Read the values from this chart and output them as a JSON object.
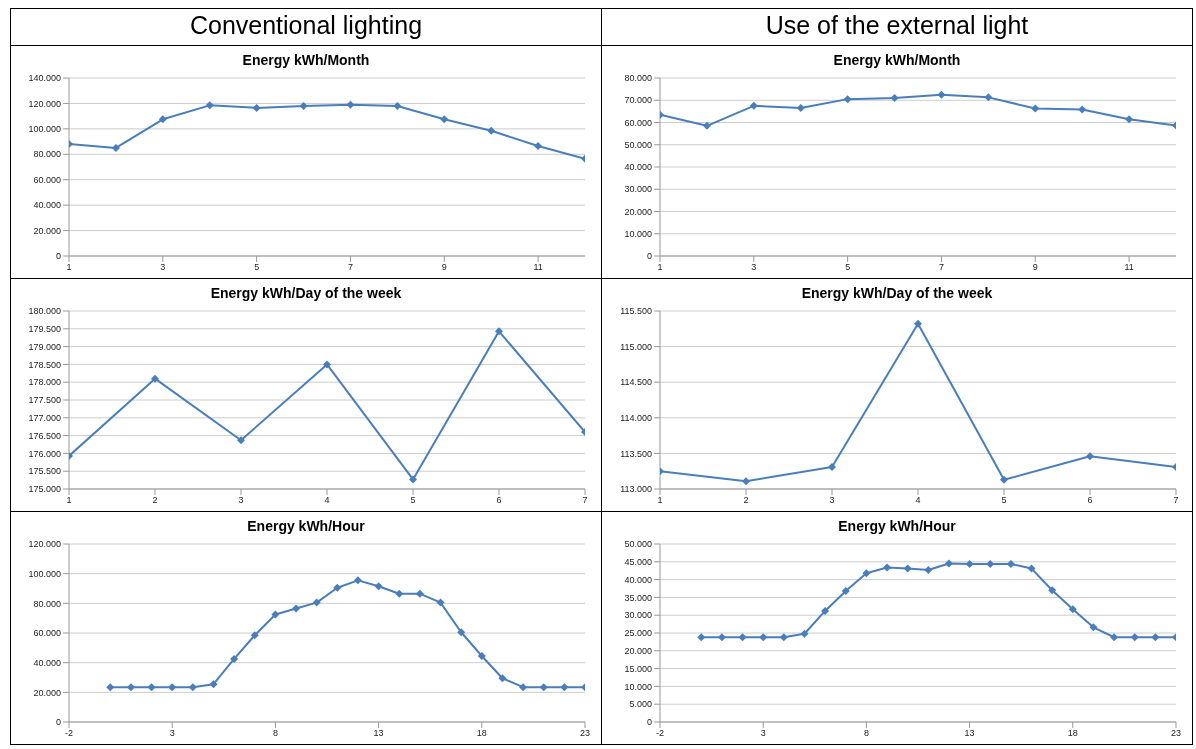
{
  "chart_data": [
    {
      "type": "line",
      "title": "Energy kWh/Month",
      "annotations": [
        "Conventional lighting"
      ],
      "x": [
        1,
        2,
        3,
        4,
        5,
        6,
        7,
        8,
        9,
        10,
        11,
        12
      ],
      "series": [
        {
          "color": "#4a7ebb",
          "values": [
            88000,
            85000,
            107500,
            118500,
            116500,
            118000,
            119000,
            118000,
            107500,
            98500,
            86500,
            76500
          ]
        }
      ],
      "xlim": [
        1,
        12
      ],
      "xticks": [
        1,
        3,
        5,
        7,
        9,
        11
      ],
      "ylim": [
        0,
        140000
      ],
      "yticks": [
        {
          "value": 0,
          "label": "0"
        },
        {
          "value": 20000,
          "label": "20.000"
        },
        {
          "value": 40000,
          "label": "40.000"
        },
        {
          "value": 60000,
          "label": "60.000"
        },
        {
          "value": 80000,
          "label": "80.000"
        },
        {
          "value": 100000,
          "label": "100.000"
        },
        {
          "value": 120000,
          "label": "120.000"
        },
        {
          "value": 140000,
          "label": "140.000"
        }
      ],
      "grid": "y",
      "marker": "diamond",
      "line_style": "solid",
      "legend": false
    },
    {
      "type": "line",
      "title": "Energy kWh/Month",
      "annotations": [
        "Use of the external light"
      ],
      "x": [
        1,
        2,
        3,
        4,
        5,
        6,
        7,
        8,
        9,
        10,
        11,
        12
      ],
      "series": [
        {
          "color": "#4a7ebb",
          "values": [
            63500,
            58500,
            67500,
            66500,
            70500,
            71000,
            72500,
            71300,
            66300,
            65800,
            61500,
            58700
          ]
        }
      ],
      "xlim": [
        1,
        12
      ],
      "xticks": [
        1,
        3,
        5,
        7,
        9,
        11
      ],
      "ylim": [
        0,
        80000
      ],
      "yticks": [
        {
          "value": 0,
          "label": "0"
        },
        {
          "value": 10000,
          "label": "10.000"
        },
        {
          "value": 20000,
          "label": "20.000"
        },
        {
          "value": 30000,
          "label": "30.000"
        },
        {
          "value": 40000,
          "label": "40.000"
        },
        {
          "value": 50000,
          "label": "50.000"
        },
        {
          "value": 60000,
          "label": "60.000"
        },
        {
          "value": 70000,
          "label": "70.000"
        },
        {
          "value": 80000,
          "label": "80.000"
        }
      ],
      "grid": "y",
      "marker": "diamond",
      "line_style": "solid",
      "legend": false
    },
    {
      "type": "line",
      "title": "Energy kWh/Day of the week",
      "x": [
        1,
        2,
        3,
        4,
        5,
        6,
        7
      ],
      "series": [
        {
          "color": "#4a7ebb",
          "values": [
            175930,
            178100,
            176370,
            178500,
            175270,
            179430,
            176600
          ]
        }
      ],
      "xlim": [
        1,
        7
      ],
      "xticks": [
        1,
        2,
        3,
        4,
        5,
        6,
        7
      ],
      "ylim": [
        175000,
        180000
      ],
      "yticks": [
        {
          "value": 175000,
          "label": "175.000"
        },
        {
          "value": 175500,
          "label": "175.500"
        },
        {
          "value": 176000,
          "label": "176.000"
        },
        {
          "value": 176500,
          "label": "176.500"
        },
        {
          "value": 177000,
          "label": "177.000"
        },
        {
          "value": 177500,
          "label": "177.500"
        },
        {
          "value": 178000,
          "label": "178.000"
        },
        {
          "value": 178500,
          "label": "178.500"
        },
        {
          "value": 179000,
          "label": "179.000"
        },
        {
          "value": 179500,
          "label": "179.500"
        },
        {
          "value": 180000,
          "label": "180.000"
        }
      ],
      "grid": "y",
      "marker": "diamond",
      "line_style": "solid",
      "legend": false
    },
    {
      "type": "line",
      "title": "Energy kWh/Day of the week",
      "x": [
        1,
        2,
        3,
        4,
        5,
        6,
        7
      ],
      "series": [
        {
          "color": "#4a7ebb",
          "values": [
            113250,
            113110,
            113310,
            115320,
            113130,
            113460,
            113310
          ]
        }
      ],
      "xlim": [
        1,
        7
      ],
      "xticks": [
        1,
        2,
        3,
        4,
        5,
        6,
        7
      ],
      "ylim": [
        113000,
        115500
      ],
      "yticks": [
        {
          "value": 113000,
          "label": "113.000"
        },
        {
          "value": 113500,
          "label": "113.500"
        },
        {
          "value": 114000,
          "label": "114.000"
        },
        {
          "value": 114500,
          "label": "114.500"
        },
        {
          "value": 115000,
          "label": "115.000"
        },
        {
          "value": 115500,
          "label": "115.500"
        }
      ],
      "grid": "y",
      "marker": "diamond",
      "line_style": "solid",
      "legend": false
    },
    {
      "type": "line",
      "title": "Energy kWh/Hour",
      "x": [
        0,
        1,
        2,
        3,
        4,
        5,
        6,
        7,
        8,
        9,
        10,
        11,
        12,
        13,
        14,
        15,
        16,
        17,
        18,
        19,
        20,
        21,
        22,
        23
      ],
      "series": [
        {
          "color": "#4a7ebb",
          "values": [
            23500,
            23500,
            23500,
            23500,
            23500,
            25500,
            42500,
            58500,
            72500,
            76500,
            80500,
            90500,
            95500,
            91500,
            86500,
            86500,
            80500,
            60500,
            44500,
            29500,
            23500,
            23500,
            23500,
            23500
          ]
        }
      ],
      "xlim": [
        -2,
        23
      ],
      "xticks": [
        -2,
        3,
        8,
        13,
        18,
        23
      ],
      "ylim": [
        0,
        120000
      ],
      "yticks": [
        {
          "value": 0,
          "label": "0"
        },
        {
          "value": 20000,
          "label": "20.000"
        },
        {
          "value": 40000,
          "label": "40.000"
        },
        {
          "value": 60000,
          "label": "60.000"
        },
        {
          "value": 80000,
          "label": "80.000"
        },
        {
          "value": 100000,
          "label": "100.000"
        },
        {
          "value": 120000,
          "label": "120.000"
        }
      ],
      "grid": "y",
      "marker": "diamond",
      "line_style": "solid",
      "legend": false
    },
    {
      "type": "line",
      "title": "Energy kWh/Hour",
      "x": [
        0,
        1,
        2,
        3,
        4,
        5,
        6,
        7,
        8,
        9,
        10,
        11,
        12,
        13,
        14,
        15,
        16,
        17,
        18,
        19,
        20,
        21,
        22,
        23
      ],
      "series": [
        {
          "color": "#4a7ebb",
          "values": [
            23800,
            23800,
            23800,
            23800,
            23800,
            24800,
            31200,
            36800,
            41800,
            43400,
            43100,
            42700,
            44500,
            44400,
            44400,
            44400,
            43100,
            37000,
            31700,
            26600,
            23800,
            23800,
            23800,
            23800
          ]
        }
      ],
      "xlim": [
        -2,
        23
      ],
      "xticks": [
        -2,
        3,
        8,
        13,
        18,
        23
      ],
      "ylim": [
        0,
        50000
      ],
      "yticks": [
        {
          "value": 0,
          "label": "0"
        },
        {
          "value": 5000,
          "label": "5.000"
        },
        {
          "value": 10000,
          "label": "10.000"
        },
        {
          "value": 15000,
          "label": "15.000"
        },
        {
          "value": 20000,
          "label": "20.000"
        },
        {
          "value": 25000,
          "label": "25.000"
        },
        {
          "value": 30000,
          "label": "30.000"
        },
        {
          "value": 35000,
          "label": "35.000"
        },
        {
          "value": 40000,
          "label": "40.000"
        },
        {
          "value": 45000,
          "label": "45.000"
        },
        {
          "value": 50000,
          "label": "50.000"
        }
      ],
      "grid": "y",
      "marker": "diamond",
      "line_style": "solid",
      "legend": false
    }
  ]
}
